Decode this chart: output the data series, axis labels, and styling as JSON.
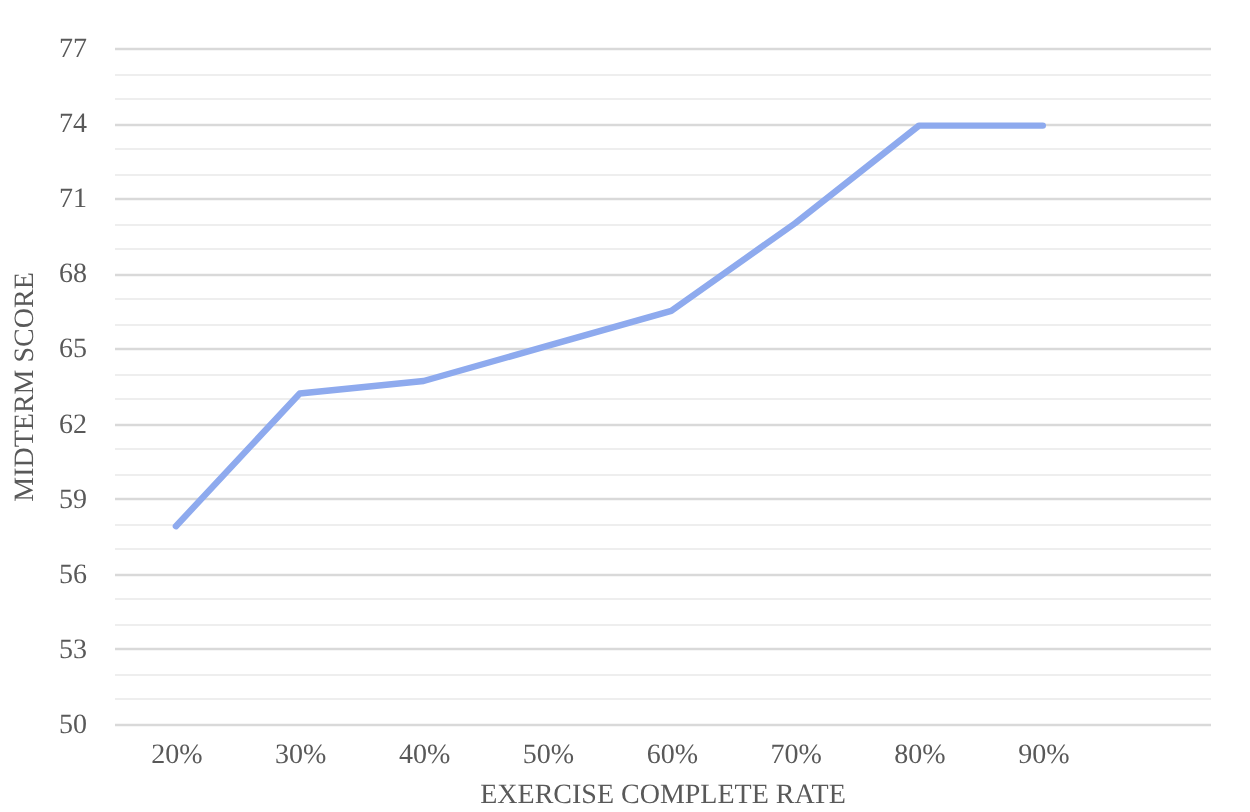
{
  "chart_data": {
    "type": "line",
    "xlabel": "EXERCISE COMPLETE RATE",
    "ylabel": "MIDTERM SCORE",
    "categories": [
      "20%",
      "30%",
      "40%",
      "50%",
      "60%",
      "70%",
      "80%",
      "90%"
    ],
    "series": [
      {
        "color": "#8eaaee",
        "values": [
          57.9,
          63.2,
          63.7,
          65.1,
          66.5,
          70.0,
          73.9,
          73.9
        ]
      }
    ],
    "ylim": [
      50,
      77
    ],
    "yticks": [
      50,
      {
        "value": 51,
        "label": null
      },
      {
        "value": 52,
        "label": null
      },
      53,
      {
        "value": 54,
        "label": null
      },
      {
        "value": 55,
        "label": null
      },
      56,
      {
        "value": 57,
        "label": null
      },
      {
        "value": 58,
        "label": null
      },
      59,
      {
        "value": 60,
        "label": null
      },
      {
        "value": 61,
        "label": null
      },
      62,
      {
        "value": 63,
        "label": null
      },
      {
        "value": 64,
        "label": null
      },
      65,
      {
        "value": 66,
        "label": null
      },
      {
        "value": 67,
        "label": null
      },
      68,
      {
        "value": 69,
        "label": null
      },
      {
        "value": 70,
        "label": null
      },
      71,
      {
        "value": 72,
        "label": null
      },
      {
        "value": 73,
        "label": null
      },
      74,
      {
        "value": 75,
        "label": null
      },
      {
        "value": 76,
        "label": null
      },
      77
    ],
    "grid": "y",
    "legend": false,
    "marker": "none",
    "line_style": "solid"
  }
}
